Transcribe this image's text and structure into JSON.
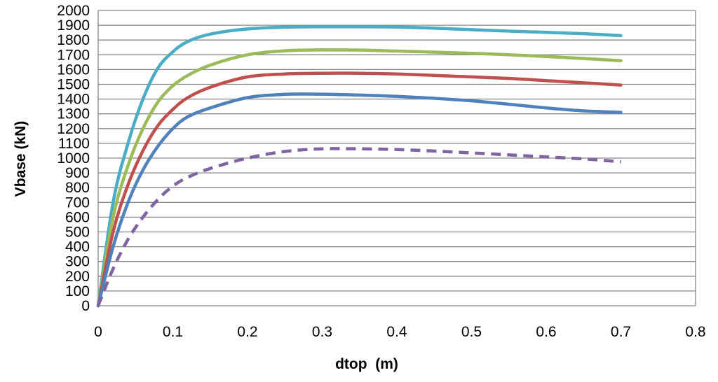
{
  "chart_data": {
    "type": "line",
    "title": "",
    "xlabel": "dtop  (m)",
    "ylabel": "Vbase (kN)",
    "xlim": [
      0,
      0.8
    ],
    "ylim": [
      0,
      2000
    ],
    "x_ticks": [
      "0",
      "0.1",
      "0.2",
      "0.3",
      "0.4",
      "0.5",
      "0.6",
      "0.7",
      "0.8"
    ],
    "y_ticks": [
      "0",
      "100",
      "200",
      "300",
      "400",
      "500",
      "600",
      "700",
      "800",
      "900",
      "1000",
      "1100",
      "1200",
      "1300",
      "1400",
      "1500",
      "1600",
      "1700",
      "1800",
      "1900",
      "2000"
    ],
    "grid": "horizontal",
    "legend": "none",
    "series": [
      {
        "name": "series-cyan",
        "color": "#4BACC6",
        "dashed": false,
        "points": [
          [
            0,
            0
          ],
          [
            0.02,
            700
          ],
          [
            0.04,
            1100
          ],
          [
            0.06,
            1400
          ],
          [
            0.08,
            1610
          ],
          [
            0.1,
            1720
          ],
          [
            0.12,
            1790
          ],
          [
            0.15,
            1840
          ],
          [
            0.2,
            1875
          ],
          [
            0.25,
            1887
          ],
          [
            0.3,
            1890
          ],
          [
            0.35,
            1890
          ],
          [
            0.4,
            1888
          ],
          [
            0.45,
            1880
          ],
          [
            0.5,
            1870
          ],
          [
            0.55,
            1860
          ],
          [
            0.6,
            1852
          ],
          [
            0.65,
            1843
          ],
          [
            0.7,
            1830
          ]
        ]
      },
      {
        "name": "series-green",
        "color": "#9BBB59",
        "dashed": false,
        "points": [
          [
            0,
            0
          ],
          [
            0.02,
            600
          ],
          [
            0.04,
            950
          ],
          [
            0.06,
            1200
          ],
          [
            0.08,
            1380
          ],
          [
            0.1,
            1490
          ],
          [
            0.12,
            1560
          ],
          [
            0.15,
            1630
          ],
          [
            0.2,
            1700
          ],
          [
            0.25,
            1727
          ],
          [
            0.3,
            1733
          ],
          [
            0.35,
            1732
          ],
          [
            0.4,
            1725
          ],
          [
            0.45,
            1718
          ],
          [
            0.5,
            1710
          ],
          [
            0.55,
            1700
          ],
          [
            0.6,
            1688
          ],
          [
            0.65,
            1675
          ],
          [
            0.7,
            1660
          ]
        ]
      },
      {
        "name": "series-red",
        "color": "#C0504D",
        "dashed": false,
        "points": [
          [
            0,
            0
          ],
          [
            0.02,
            500
          ],
          [
            0.04,
            820
          ],
          [
            0.06,
            1050
          ],
          [
            0.08,
            1220
          ],
          [
            0.1,
            1330
          ],
          [
            0.12,
            1410
          ],
          [
            0.15,
            1480
          ],
          [
            0.2,
            1550
          ],
          [
            0.25,
            1570
          ],
          [
            0.3,
            1575
          ],
          [
            0.35,
            1575
          ],
          [
            0.4,
            1570
          ],
          [
            0.45,
            1560
          ],
          [
            0.5,
            1550
          ],
          [
            0.55,
            1540
          ],
          [
            0.6,
            1525
          ],
          [
            0.65,
            1510
          ],
          [
            0.7,
            1495
          ]
        ]
      },
      {
        "name": "series-blue",
        "color": "#4F81BD",
        "dashed": false,
        "points": [
          [
            0,
            0
          ],
          [
            0.02,
            400
          ],
          [
            0.04,
            700
          ],
          [
            0.06,
            920
          ],
          [
            0.08,
            1080
          ],
          [
            0.1,
            1200
          ],
          [
            0.12,
            1280
          ],
          [
            0.15,
            1340
          ],
          [
            0.2,
            1410
          ],
          [
            0.25,
            1432
          ],
          [
            0.3,
            1433
          ],
          [
            0.35,
            1427
          ],
          [
            0.4,
            1418
          ],
          [
            0.45,
            1405
          ],
          [
            0.5,
            1388
          ],
          [
            0.55,
            1365
          ],
          [
            0.6,
            1340
          ],
          [
            0.65,
            1320
          ],
          [
            0.7,
            1310
          ]
        ]
      },
      {
        "name": "series-purple-dashed",
        "color": "#8064A2",
        "dashed": true,
        "points": [
          [
            0,
            0
          ],
          [
            0.02,
            250
          ],
          [
            0.04,
            450
          ],
          [
            0.06,
            600
          ],
          [
            0.08,
            720
          ],
          [
            0.1,
            810
          ],
          [
            0.12,
            870
          ],
          [
            0.15,
            930
          ],
          [
            0.2,
            1000
          ],
          [
            0.25,
            1045
          ],
          [
            0.3,
            1063
          ],
          [
            0.35,
            1063
          ],
          [
            0.4,
            1058
          ],
          [
            0.45,
            1048
          ],
          [
            0.5,
            1035
          ],
          [
            0.55,
            1022
          ],
          [
            0.6,
            1008
          ],
          [
            0.65,
            995
          ],
          [
            0.7,
            975
          ]
        ]
      }
    ]
  }
}
